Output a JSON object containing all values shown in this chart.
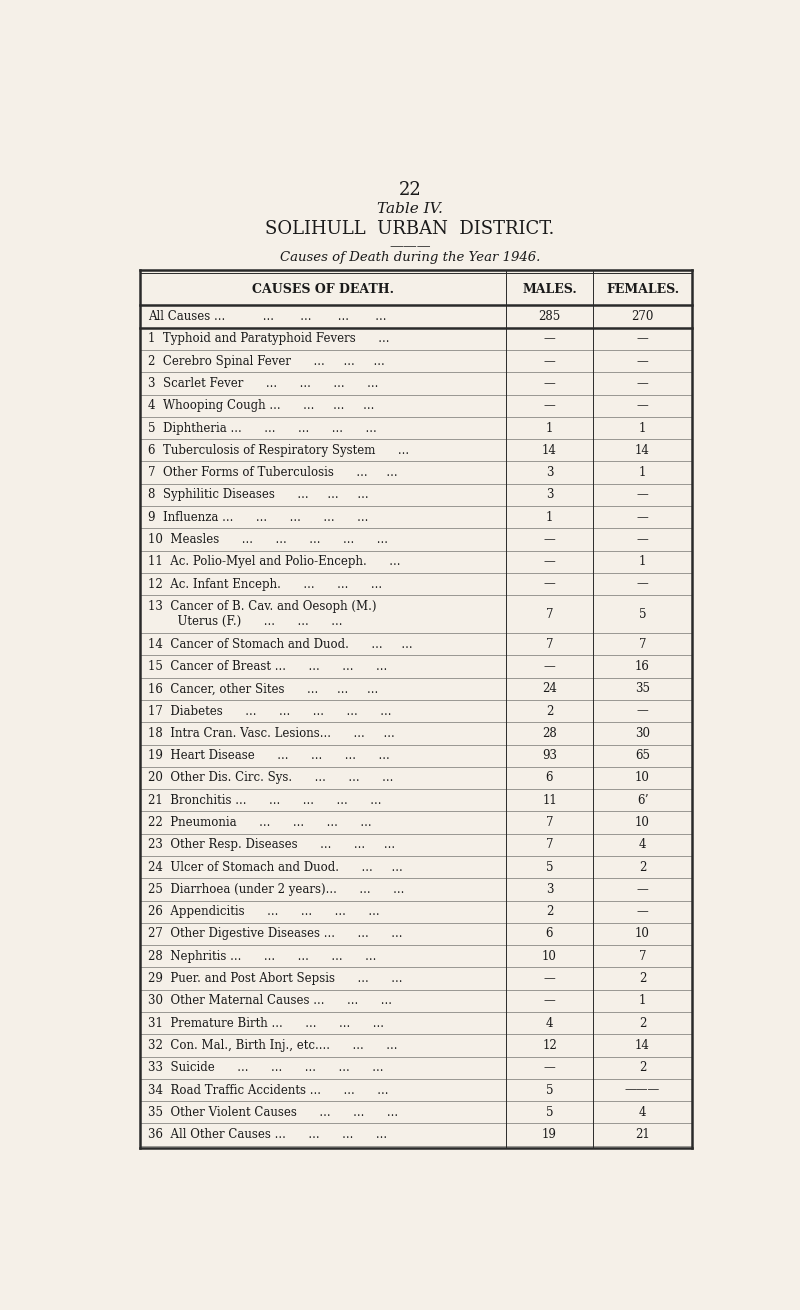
{
  "page_number": "22",
  "title_line1": "Table IV.",
  "title_line2": "SOLIHULL  URBAN  DISTRICT.",
  "title_line3": "Causes of Death during the Year 1946.",
  "col_headers": [
    "CAUSES OF DEATH.",
    "MALES.",
    "FEMALES."
  ],
  "rows": [
    {
      "label": "All Causes ...          ...       ...       ...       ...",
      "male": "285",
      "female": "270",
      "separator_after": true,
      "is_all_causes": true
    },
    {
      "label": "1  Typhoid and Paratyphoid Fevers      ...",
      "male": "—",
      "female": "—"
    },
    {
      "label": "2  Cerebro Spinal Fever      ...     ...     ...",
      "male": "—",
      "female": "—"
    },
    {
      "label": "3  Scarlet Fever      ...      ...      ...      ...",
      "male": "—",
      "female": "—"
    },
    {
      "label": "4  Whooping Cough ...      ...     ...     ...",
      "male": "—",
      "female": "—"
    },
    {
      "label": "5  Diphtheria ...      ...      ...      ...      ...",
      "male": "1",
      "female": "1"
    },
    {
      "label": "6  Tuberculosis of Respiratory System      ...",
      "male": "14",
      "female": "14"
    },
    {
      "label": "7  Other Forms of Tuberculosis      ...     ...",
      "male": "3",
      "female": "1"
    },
    {
      "label": "8  Syphilitic Diseases      ...     ...     ...",
      "male": "3",
      "female": "—"
    },
    {
      "label": "9  Influenza ...      ...      ...      ...      ...",
      "male": "1",
      "female": "—"
    },
    {
      "label": "10  Measles      ...      ...      ...      ...      ...",
      "male": "—",
      "female": "—"
    },
    {
      "label": "11  Ac. Polio-Myel and Polio-Enceph.      ...",
      "male": "—",
      "female": "1"
    },
    {
      "label": "12  Ac. Infant Enceph.      ...      ...      ...",
      "male": "—",
      "female": "—"
    },
    {
      "label": "13  Cancer of B. Cav. and Oesoph (M.)",
      "label2": "      Uterus (F.)      ...      ...      ...",
      "male": "7",
      "female": "5",
      "two_line": true
    },
    {
      "label": "14  Cancer of Stomach and Duod.      ...     ...",
      "male": "7",
      "female": "7"
    },
    {
      "label": "15  Cancer of Breast ...      ...      ...      ...",
      "male": "—",
      "female": "16"
    },
    {
      "label": "16  Cancer, other Sites      ...     ...     ...",
      "male": "24",
      "female": "35"
    },
    {
      "label": "17  Diabetes      ...      ...      ...      ...      ...",
      "male": "2",
      "female": "—"
    },
    {
      "label": "18  Intra Cran. Vasc. Lesions...      ...     ...",
      "male": "28",
      "female": "30"
    },
    {
      "label": "19  Heart Disease      ...      ...      ...      ...",
      "male": "93",
      "female": "65"
    },
    {
      "label": "20  Other Dis. Circ. Sys.      ...      ...      ...",
      "male": "6",
      "female": "10"
    },
    {
      "label": "21  Bronchitis ...      ...      ...      ...      ...",
      "male": "11",
      "female": "6ʼ"
    },
    {
      "label": "22  Pneumonia      ...      ...      ...      ...",
      "male": "7",
      "female": "10"
    },
    {
      "label": "23  Other Resp. Diseases      ...      ...     ...",
      "male": "7",
      "female": "4"
    },
    {
      "label": "24  Ulcer of Stomach and Duod.      ...     ...",
      "male": "5",
      "female": "2"
    },
    {
      "label": "25  Diarrhoea (under 2 years)...      ...      ...",
      "male": "3",
      "female": "—"
    },
    {
      "label": "26  Appendicitis      ...      ...      ...      ...",
      "male": "2",
      "female": "—"
    },
    {
      "label": "27  Other Digestive Diseases ...      ...      ...",
      "male": "6",
      "female": "10"
    },
    {
      "label": "28  Nephritis ...      ...      ...      ...      ...",
      "male": "10",
      "female": "7"
    },
    {
      "label": "29  Puer. and Post Abort Sepsis      ...      ...",
      "male": "—",
      "female": "2"
    },
    {
      "label": "30  Other Maternal Causes ...      ...      ...",
      "male": "—",
      "female": "1"
    },
    {
      "label": "31  Premature Birth ...      ...      ...      ...",
      "male": "4",
      "female": "2"
    },
    {
      "label": "32  Con. Mal., Birth Inj., etc....      ...      ...",
      "male": "12",
      "female": "14"
    },
    {
      "label": "33  Suicide      ...      ...      ...      ...      ...",
      "male": "—",
      "female": "2"
    },
    {
      "label": "34  Road Traffic Accidents ...      ...      ...",
      "male": "5",
      "female": "———"
    },
    {
      "label": "35  Other Violent Causes      ...      ...      ...",
      "male": "5",
      "female": "4"
    },
    {
      "label": "36  All Other Causes ...      ...      ...      ...",
      "male": "19",
      "female": "21"
    }
  ],
  "bg_color": "#f5f0e8",
  "text_color": "#1a1a1a",
  "line_color": "#2a2a2a",
  "header_fontsize": 9.0,
  "body_fontsize": 8.5,
  "title_color": "#1a1a1a"
}
